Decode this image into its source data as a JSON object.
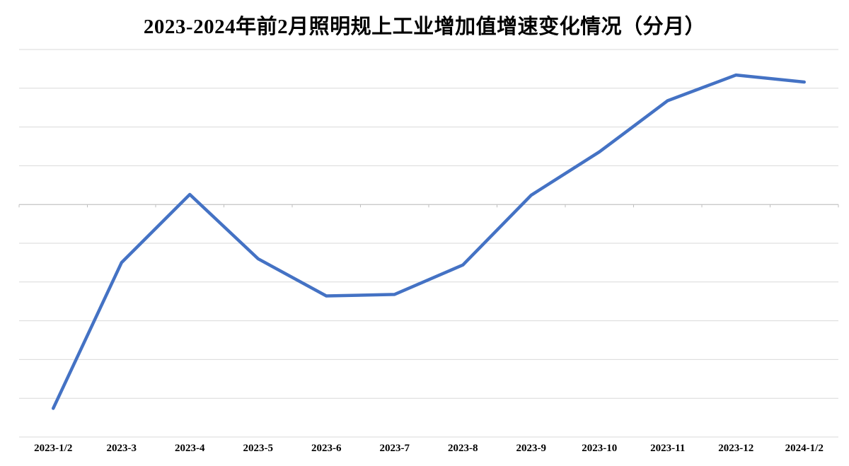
{
  "chart_data": {
    "type": "line",
    "title": "2023-2024年前2月照明规上工业增加值增速变化情况（分月）",
    "categories": [
      "2023-1/2",
      "2023-3",
      "2023-4",
      "2023-5",
      "2023-6",
      "2023-7",
      "2023-8",
      "2023-9",
      "2023-10",
      "2023-11",
      "2023-12",
      "2024-1/2"
    ],
    "series": [
      {
        "values": [
          -26.3,
          -7.5,
          1.3,
          -7.0,
          -11.8,
          -11.6,
          -7.8,
          1.2,
          6.8,
          13.4,
          16.7,
          15.8
        ]
      }
    ],
    "ylim": [
      -30,
      20
    ],
    "gridline_step": 5,
    "y_tick_labels_visible": false,
    "grid": "horizontal",
    "legend_position": "none",
    "colors": {
      "line": "#4472C4",
      "gridline": "#D9D9D9",
      "zero_axis": "#BFBFBF",
      "label": "#000000",
      "background": "#FFFFFF"
    }
  }
}
